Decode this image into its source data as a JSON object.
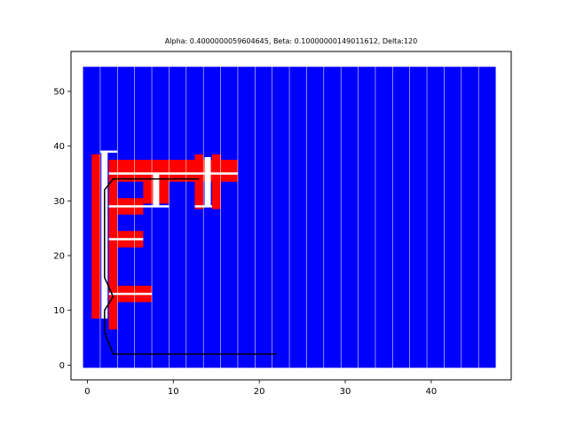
{
  "chart_data": {
    "type": "heatmap",
    "title": "Alpha: 0.4000000059604645, Beta: 0.10000000149011612, Delta:120",
    "xlabel": "",
    "ylabel": "",
    "xlim": [
      -1.9,
      49.3
    ],
    "ylim": [
      -2.7,
      57.3
    ],
    "xticks": [
      0,
      10,
      20,
      30,
      40
    ],
    "yticks": [
      0,
      10,
      20,
      30,
      40,
      50
    ],
    "grid": false,
    "colors": {
      "background": "#0000ff",
      "obstacle": "#ff0000",
      "open_track": "#ffffff",
      "path": "#000000"
    },
    "background_region": {
      "x": [
        -0.5,
        47.5
      ],
      "y": [
        -0.5,
        54.5
      ]
    },
    "column_separators_x": [
      1.5,
      3.5,
      5.5,
      7.5,
      9.5,
      11.5,
      13.5,
      15.5,
      17.5,
      19.5,
      21.5,
      23.5,
      25.5,
      27.5,
      29.5,
      31.5,
      33.5,
      35.5,
      37.5,
      39.5,
      41.5,
      43.5,
      45.5
    ],
    "red_cells": [
      {
        "x0": 0.5,
        "x1": 1.5,
        "y0": 8.5,
        "y1": 38.5
      },
      {
        "x0": 2.5,
        "x1": 3.5,
        "y0": 6.5,
        "y1": 37.5
      },
      {
        "x0": 2.5,
        "x1": 17.5,
        "y0": 33.5,
        "y1": 37.5
      },
      {
        "x0": 2.5,
        "x1": 6.5,
        "y0": 27.5,
        "y1": 30.5
      },
      {
        "x0": 2.5,
        "x1": 6.5,
        "y0": 21.5,
        "y1": 24.5
      },
      {
        "x0": 2.5,
        "x1": 7.5,
        "y0": 11.5,
        "y1": 14.5
      },
      {
        "x0": 6.5,
        "x1": 9.5,
        "y0": 29.5,
        "y1": 35.5
      },
      {
        "x0": 12.5,
        "x1": 13.5,
        "y0": 28.5,
        "y1": 38.5
      },
      {
        "x0": 14.5,
        "x1": 15.5,
        "y0": 28.5,
        "y1": 38.5
      }
    ],
    "white_lines_h": [
      {
        "x0": 1.5,
        "x1": 3.5,
        "y": 39
      },
      {
        "x0": 2.5,
        "x1": 17.5,
        "y": 35
      },
      {
        "x0": 2.5,
        "x1": 9.5,
        "y": 29
      },
      {
        "x0": 2.5,
        "x1": 6.5,
        "y": 23
      },
      {
        "x0": 2.5,
        "x1": 7.5,
        "y": 13
      },
      {
        "x0": 12.5,
        "x1": 14.5,
        "y": 29
      }
    ],
    "white_lines_v": [
      {
        "x": 2,
        "y0": 8.5,
        "y1": 39
      },
      {
        "x": 8,
        "y0": 29,
        "y1": 35
      },
      {
        "x": 14,
        "y0": 29,
        "y1": 38
      }
    ],
    "path": {
      "x": [
        22,
        3,
        2,
        2,
        3,
        2,
        2,
        3,
        13
      ],
      "y": [
        2,
        2,
        6,
        10,
        12.5,
        16,
        32,
        34,
        34
      ]
    }
  }
}
